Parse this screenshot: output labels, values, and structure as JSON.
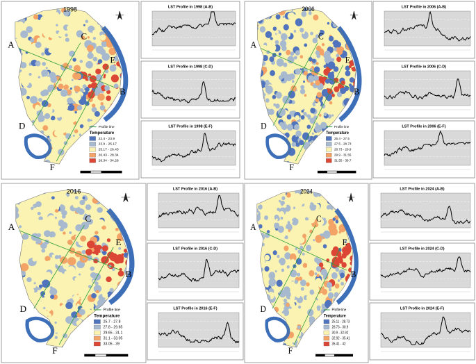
{
  "panels": [
    {
      "year": "1998",
      "points": [
        "A",
        "B",
        "C",
        "D",
        "E",
        "F"
      ],
      "legend": {
        "line_label": "Profile line",
        "title": "Temperature",
        "classes": [
          {
            "range": "22.4 - 23.9",
            "color": "#4f74bd"
          },
          {
            "range": "23.9 - 25.17",
            "color": "#a7b9cf"
          },
          {
            "range": "25.17 - 26.43",
            "color": "#fbf3b1"
          },
          {
            "range": "26.43 - 28.34",
            "color": "#f4a367"
          },
          {
            "range": "28.34 - 34.28",
            "color": "#dc4634"
          }
        ]
      },
      "profiles": [
        {
          "title": "LST Profile in 1998 (A-B)"
        },
        {
          "title": "LST Profile in 1998 (C-D)"
        },
        {
          "title": "LST Profile in 1998 (E-F)"
        }
      ]
    },
    {
      "year": "2006",
      "points": [
        "A",
        "B",
        "C",
        "D",
        "E",
        "F"
      ],
      "legend": {
        "line_label": "Profile line",
        "title": "Temperature",
        "classes": [
          {
            "range": "25.4 - 27.5",
            "color": "#4f74bd"
          },
          {
            "range": "27.5 - 28.73",
            "color": "#a7b9cf"
          },
          {
            "range": "28.73 - 29.9",
            "color": "#fbf3b1"
          },
          {
            "range": "29.9 - 31.55",
            "color": "#f4a367"
          },
          {
            "range": "31.55 - 39.7",
            "color": "#dc4634"
          }
        ]
      },
      "profiles": [
        {
          "title": "LST Profile in 2006 (A-B)"
        },
        {
          "title": "LST Profile in 2006 (C-D)"
        },
        {
          "title": "LST Profile in 2006 (E-F)"
        }
      ]
    },
    {
      "year": "2016",
      "points": [
        "A",
        "B",
        "C",
        "D",
        "E",
        "F"
      ],
      "legend": {
        "line_label": "Profile line",
        "title": "Temperature",
        "classes": [
          {
            "range": "25.7 - 27.8",
            "color": "#4f74bd"
          },
          {
            "range": "27.8 - 29.65",
            "color": "#a7b9cf"
          },
          {
            "range": "29.65 - 31.1",
            "color": "#fbf3b1"
          },
          {
            "range": "31.1 - 33.05",
            "color": "#f4a367"
          },
          {
            "range": "33.05 - 39",
            "color": "#dc4634"
          }
        ]
      },
      "profiles": [
        {
          "title": "LST Profile in 2016 (A-B)"
        },
        {
          "title": "LST Profile in 2016 (C-D)"
        },
        {
          "title": "LST Profile in 2016 (E-F)"
        }
      ]
    },
    {
      "year": "2024",
      "points": [
        "A",
        "B",
        "C",
        "D",
        "E",
        "F"
      ],
      "legend": {
        "line_label": "Profile line",
        "title": "Temperature",
        "classes": [
          {
            "range": "25.11 - 28.73",
            "color": "#4f74bd"
          },
          {
            "range": "28.73 - 30.9",
            "color": "#a7b9cf"
          },
          {
            "range": "30.9 - 32.92",
            "color": "#fbf3b1"
          },
          {
            "range": "32.92 - 35.41",
            "color": "#f4a367"
          },
          {
            "range": "35.41 - 42",
            "color": "#dc4634"
          }
        ]
      },
      "profiles": [
        {
          "title": "LST Profile in 2024 (A-B)"
        },
        {
          "title": "LST Profile in 2024 (C-D)"
        },
        {
          "title": "LST Profile in 2024 (E-F)"
        }
      ]
    }
  ]
}
